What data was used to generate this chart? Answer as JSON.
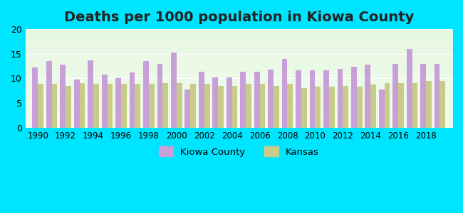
{
  "title": "Deaths per 1000 population in Kiowa County",
  "years": [
    1990,
    1991,
    1992,
    1993,
    1994,
    1995,
    1996,
    1997,
    1998,
    1999,
    2000,
    2001,
    2002,
    2003,
    2004,
    2005,
    2006,
    2007,
    2008,
    2009,
    2010,
    2011,
    2012,
    2013,
    2014,
    2015,
    2016,
    2017,
    2018,
    2019
  ],
  "kiowa": [
    12.3,
    13.5,
    12.8,
    9.8,
    13.6,
    10.8,
    10.0,
    11.2,
    13.5,
    12.9,
    15.2,
    7.8,
    11.4,
    10.2,
    10.2,
    11.4,
    11.4,
    11.8,
    14.0,
    11.7,
    11.6,
    11.7,
    12.0,
    12.4,
    12.8,
    7.8,
    13.0,
    16.0,
    13.0,
    12.9
  ],
  "kansas": [
    8.9,
    8.9,
    8.5,
    9.0,
    8.9,
    8.9,
    8.9,
    8.9,
    8.9,
    9.0,
    9.0,
    8.9,
    8.9,
    8.5,
    8.5,
    8.9,
    8.9,
    8.5,
    8.9,
    8.1,
    8.3,
    8.4,
    8.5,
    8.3,
    8.8,
    9.0,
    9.0,
    9.1,
    9.5,
    9.5
  ],
  "kiowa_color": "#c8a0d8",
  "kansas_color": "#c8cc88",
  "background_color": "#00e5ff",
  "plot_bg_top": "#e8f5e8",
  "plot_bg_bottom": "#f0fff0",
  "ylim": [
    0,
    20
  ],
  "yticks": [
    0,
    5,
    10,
    15,
    20
  ],
  "bar_width": 0.4,
  "title_fontsize": 14,
  "legend_labels": [
    "Kiowa County",
    "Kansas"
  ]
}
